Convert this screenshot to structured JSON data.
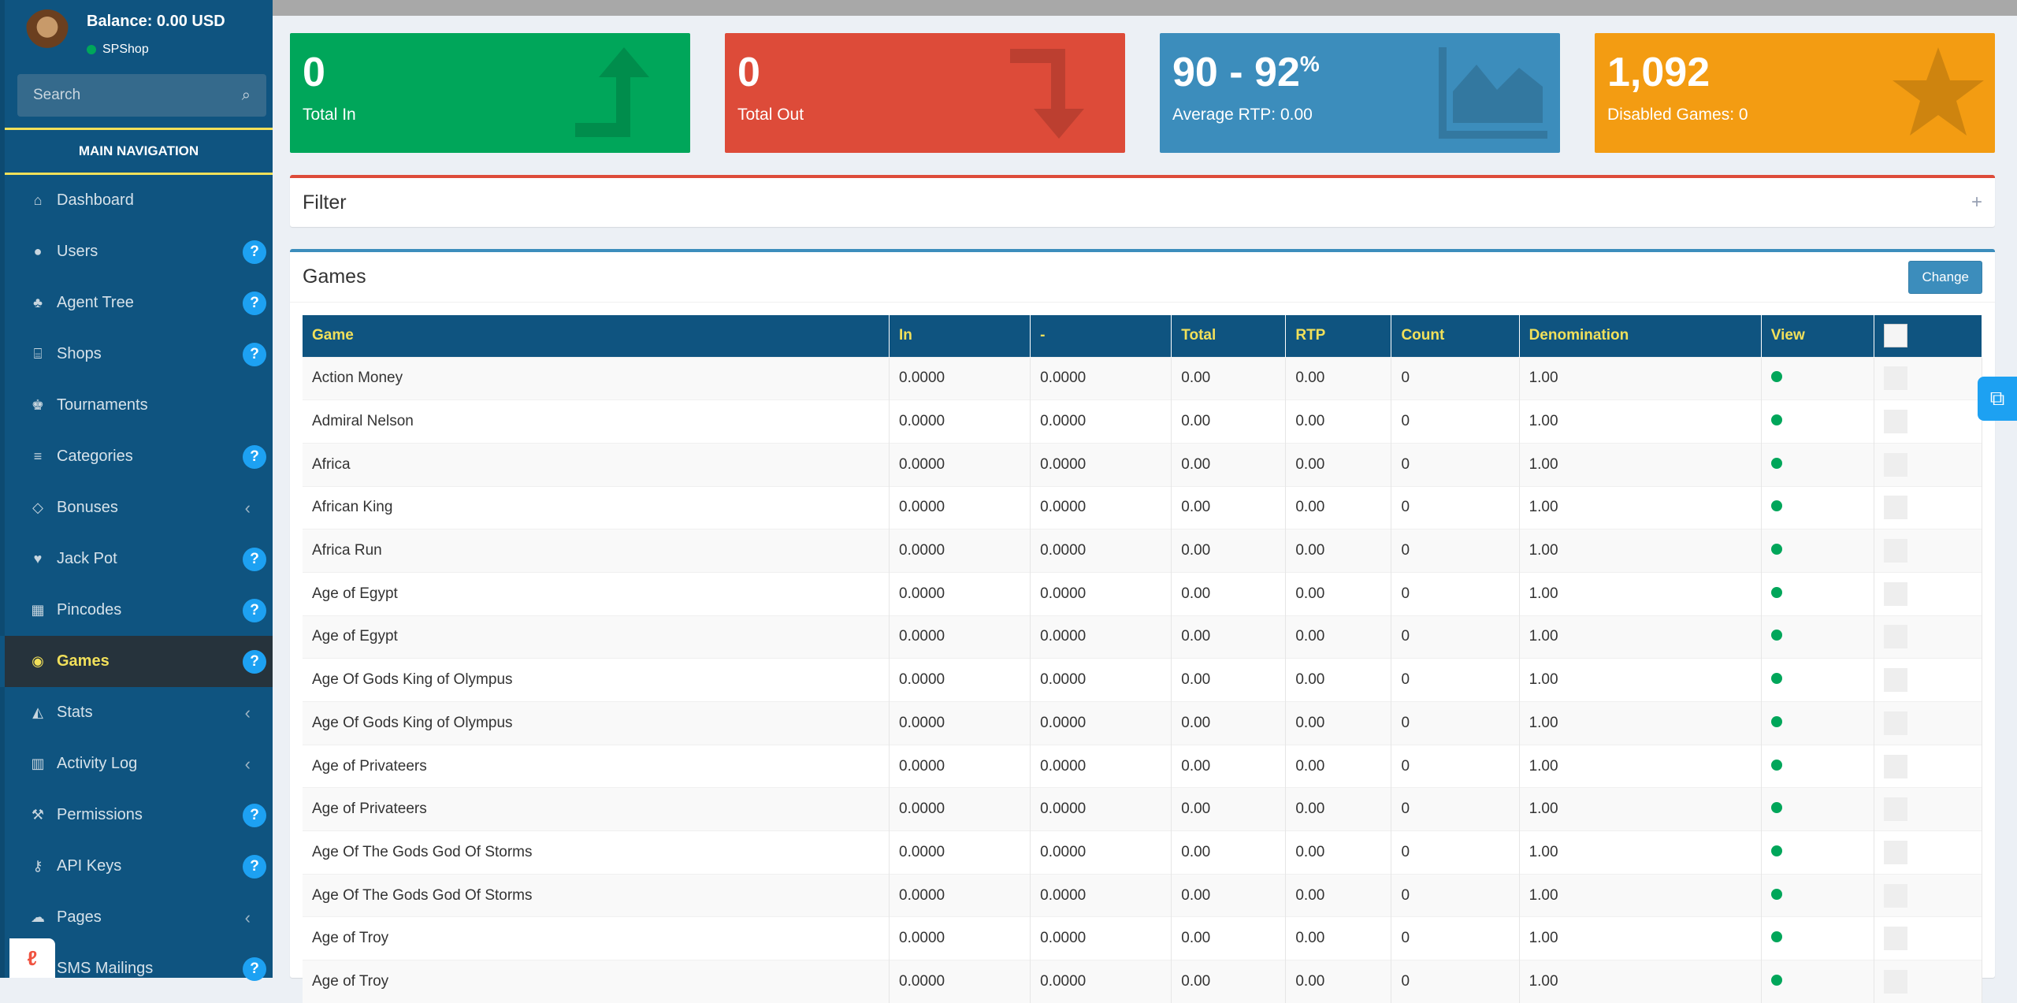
{
  "user": {
    "balance": "Balance: 0.00 USD",
    "shop": "SPShop"
  },
  "search": {
    "placeholder": "Search"
  },
  "nav_header": "MAIN NAVIGATION",
  "nav": [
    {
      "label": "Dashboard",
      "icon": "home-icon",
      "glyph": "⌂",
      "badge": ""
    },
    {
      "label": "Users",
      "icon": "user-icon",
      "glyph": "●",
      "badge": "?"
    },
    {
      "label": "Agent Tree",
      "icon": "tree-icon",
      "glyph": "♣",
      "badge": "?"
    },
    {
      "label": "Shops",
      "icon": "bank-icon",
      "glyph": "⌸",
      "badge": "?"
    },
    {
      "label": "Tournaments",
      "icon": "trophy-icon",
      "glyph": "♚",
      "badge": ""
    },
    {
      "label": "Categories",
      "icon": "list-icon",
      "glyph": "≡",
      "badge": "?"
    },
    {
      "label": "Bonuses",
      "icon": "diamond-icon",
      "glyph": "◇",
      "badge": "",
      "chevron": "‹"
    },
    {
      "label": "Jack Pot",
      "icon": "heartbeat-icon",
      "glyph": "♥",
      "badge": "?"
    },
    {
      "label": "Pincodes",
      "icon": "grid-icon",
      "glyph": "▦",
      "badge": "?"
    },
    {
      "label": "Games",
      "icon": "gamepad-icon",
      "glyph": "◉",
      "badge": "?",
      "active": true
    },
    {
      "label": "Stats",
      "icon": "area-chart-icon",
      "glyph": "◭",
      "badge": "",
      "chevron": "‹"
    },
    {
      "label": "Activity Log",
      "icon": "bar-chart-icon",
      "glyph": "▥",
      "badge": "",
      "chevron": "‹"
    },
    {
      "label": "Permissions",
      "icon": "gavel-icon",
      "glyph": "⚒",
      "badge": "?"
    },
    {
      "label": "API Keys",
      "icon": "key-icon",
      "glyph": "⚷",
      "badge": "?"
    },
    {
      "label": "Pages",
      "icon": "comments-icon",
      "glyph": "☁",
      "badge": "",
      "chevron": "‹"
    },
    {
      "label": "SMS Mailings",
      "icon": "sms-icon",
      "glyph": "✉",
      "badge": "?"
    }
  ],
  "stats": {
    "total_in": {
      "value": "0",
      "label": "Total In"
    },
    "total_out": {
      "value": "0",
      "label": "Total Out"
    },
    "rtp": {
      "value": "90 - 92",
      "suffix": "%",
      "label": "Average RTP: 0.00"
    },
    "games": {
      "value": "1,092",
      "label": "Disabled Games: 0"
    }
  },
  "colors": {
    "green": "#00a65a",
    "red": "#dd4b39",
    "blue": "#3c8dbc",
    "orange": "#f39c12",
    "sidebar": "#0f5480",
    "accent_yellow": "#f1e05a"
  },
  "filter": {
    "title": "Filter",
    "toggle": "+"
  },
  "games": {
    "title": "Games",
    "change_label": "Change",
    "columns": [
      "Game",
      "In",
      "-",
      "Total",
      "RTP",
      "Count",
      "Denomination",
      "View"
    ],
    "rows": [
      {
        "game": "Action Money",
        "in": "0.0000",
        "out": "0.0000",
        "total": "0.00",
        "rtp": "0.00",
        "count": "0",
        "denom": "1.00"
      },
      {
        "game": "Admiral Nelson",
        "in": "0.0000",
        "out": "0.0000",
        "total": "0.00",
        "rtp": "0.00",
        "count": "0",
        "denom": "1.00"
      },
      {
        "game": "Africa",
        "in": "0.0000",
        "out": "0.0000",
        "total": "0.00",
        "rtp": "0.00",
        "count": "0",
        "denom": "1.00"
      },
      {
        "game": "African King",
        "in": "0.0000",
        "out": "0.0000",
        "total": "0.00",
        "rtp": "0.00",
        "count": "0",
        "denom": "1.00"
      },
      {
        "game": "Africa Run",
        "in": "0.0000",
        "out": "0.0000",
        "total": "0.00",
        "rtp": "0.00",
        "count": "0",
        "denom": "1.00"
      },
      {
        "game": "Age of Egypt",
        "in": "0.0000",
        "out": "0.0000",
        "total": "0.00",
        "rtp": "0.00",
        "count": "0",
        "denom": "1.00"
      },
      {
        "game": "Age of Egypt",
        "in": "0.0000",
        "out": "0.0000",
        "total": "0.00",
        "rtp": "0.00",
        "count": "0",
        "denom": "1.00"
      },
      {
        "game": "Age Of Gods King of Olympus",
        "in": "0.0000",
        "out": "0.0000",
        "total": "0.00",
        "rtp": "0.00",
        "count": "0",
        "denom": "1.00"
      },
      {
        "game": "Age Of Gods King of Olympus",
        "in": "0.0000",
        "out": "0.0000",
        "total": "0.00",
        "rtp": "0.00",
        "count": "0",
        "denom": "1.00"
      },
      {
        "game": "Age of Privateers",
        "in": "0.0000",
        "out": "0.0000",
        "total": "0.00",
        "rtp": "0.00",
        "count": "0",
        "denom": "1.00"
      },
      {
        "game": "Age of Privateers",
        "in": "0.0000",
        "out": "0.0000",
        "total": "0.00",
        "rtp": "0.00",
        "count": "0",
        "denom": "1.00"
      },
      {
        "game": "Age Of The Gods God Of Storms",
        "in": "0.0000",
        "out": "0.0000",
        "total": "0.00",
        "rtp": "0.00",
        "count": "0",
        "denom": "1.00"
      },
      {
        "game": "Age Of The Gods God Of Storms",
        "in": "0.0000",
        "out": "0.0000",
        "total": "0.00",
        "rtp": "0.00",
        "count": "0",
        "denom": "1.00"
      },
      {
        "game": "Age of Troy",
        "in": "0.0000",
        "out": "0.0000",
        "total": "0.00",
        "rtp": "0.00",
        "count": "0",
        "denom": "1.00"
      },
      {
        "game": "Age of Troy",
        "in": "0.0000",
        "out": "0.0000",
        "total": "0.00",
        "rtp": "0.00",
        "count": "0",
        "denom": "1.00"
      }
    ]
  }
}
